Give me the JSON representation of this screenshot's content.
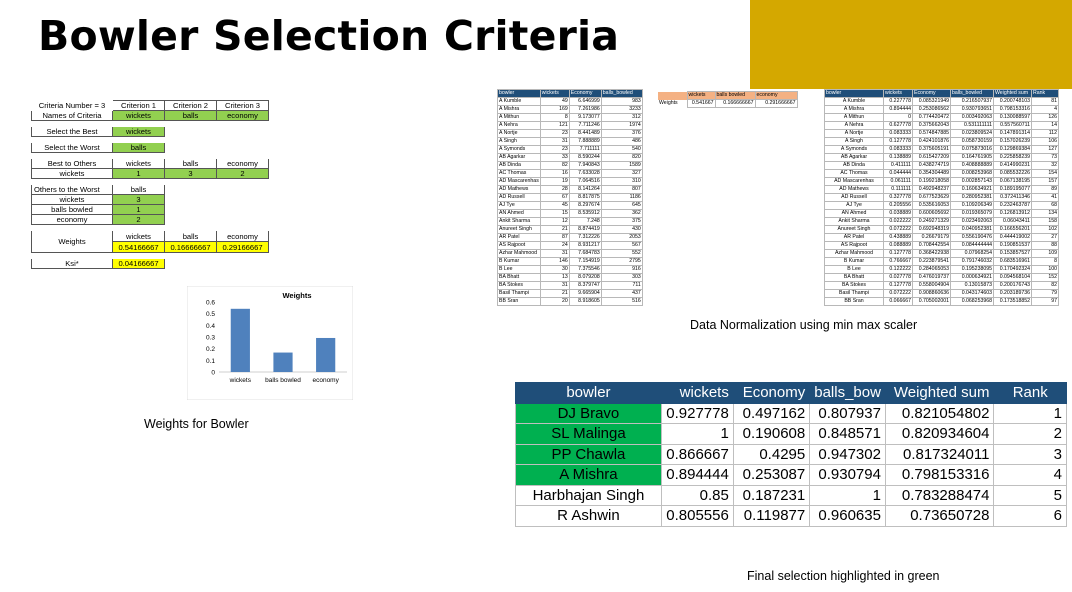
{
  "title": "Bowler Selection Criteria",
  "accent_color": "#d4a800",
  "captions": {
    "weights": "Weights for Bowler",
    "normalization": "Data Normalization using min max scaler",
    "final": "Final selection highlighted in green"
  },
  "criteria_sheet": {
    "header": [
      "Criteria Number = 3",
      "Criterion 1",
      "Criterion 2",
      "Criterion 3"
    ],
    "names_label": "Names of Criteria",
    "names": [
      "wickets",
      "balls",
      "economy"
    ],
    "best_label": "Select the Best",
    "best_value": "wickets",
    "worst_label": "Select the Worst",
    "worst_value": "balls",
    "best_to_others_label": "Best to Others",
    "best_to_others_cols": [
      "wickets",
      "balls",
      "economy"
    ],
    "best_to_others_row_label": "wickets",
    "best_to_others_vals": [
      "1",
      "3",
      "2"
    ],
    "others_to_worst_label": "Others to the Worst",
    "others_to_worst_col": "balls",
    "others_to_worst_rows": [
      {
        "name": "wickets",
        "val": "3"
      },
      {
        "name": "balls bowled",
        "val": "1"
      },
      {
        "name": "economy",
        "val": "2"
      }
    ],
    "weights_label": "Weights",
    "weights_cols": [
      "wickets",
      "balls",
      "economy"
    ],
    "weights_vals": [
      "0.54166667",
      "0.16666667",
      "0.29166667"
    ],
    "ksi_label": "Ksi*",
    "ksi_value": "0.04166667"
  },
  "chart_data": {
    "type": "bar",
    "title": "Weights",
    "categories": [
      "wickets",
      "balls bowled",
      "economy"
    ],
    "values": [
      0.5417,
      0.1667,
      0.2917
    ],
    "ylim": [
      0,
      0.6
    ],
    "yticks": [
      "0",
      "0.1",
      "0.2",
      "0.3",
      "0.4",
      "0.5",
      "0.6"
    ],
    "xlabel": "",
    "ylabel": "",
    "bar_color": "#4f81bd",
    "grid": false
  },
  "raw_table": {
    "headers": [
      "bowler",
      "wickets",
      "Economy",
      "balls_bowled"
    ],
    "rows": [
      [
        "A Kumble",
        "49",
        "6.646999",
        "983"
      ],
      [
        "A Mishra",
        "169",
        "7.261986",
        "3233"
      ],
      [
        "A Mithun",
        "8",
        "9.173077",
        "312"
      ],
      [
        "A Nehra",
        "121",
        "7.711246",
        "1974"
      ],
      [
        "A Nortje",
        "23",
        "8.441489",
        "376"
      ],
      [
        "A Singh",
        "31",
        "7.888889",
        "486"
      ],
      [
        "A Symonds",
        "23",
        "7.711111",
        "540"
      ],
      [
        "AB Agarkar",
        "33",
        "8.590244",
        "820"
      ],
      [
        "AB Dinda",
        "82",
        "7.940843",
        "1589"
      ],
      [
        "AC Thomas",
        "16",
        "7.633028",
        "327"
      ],
      [
        "AD Mascarenhas",
        "19",
        "7.064516",
        "310"
      ],
      [
        "AD Mathews",
        "28",
        "8.141264",
        "807"
      ],
      [
        "AD Russell",
        "67",
        "8.817875",
        "1186"
      ],
      [
        "AJ Tye",
        "45",
        "8.297674",
        "645"
      ],
      [
        "AN Ahmed",
        "15",
        "8.535912",
        "362"
      ],
      [
        "Ankit Sharma",
        "12",
        "7.248",
        "375"
      ],
      [
        "Anureet Singh",
        "21",
        "8.874419",
        "430"
      ],
      [
        "AR Patel",
        "87",
        "7.312226",
        "2053"
      ],
      [
        "AS Rajpoot",
        "24",
        "8.931217",
        "567"
      ],
      [
        "Azhar Mahmood",
        "31",
        "7.684783",
        "552"
      ],
      [
        "B Kumar",
        "146",
        "7.154919",
        "2795"
      ],
      [
        "B Lee",
        "30",
        "7.375546",
        "916"
      ],
      [
        "BA Bhatt",
        "13",
        "8.079208",
        "303"
      ],
      [
        "BA Stokes",
        "31",
        "8.379747",
        "711"
      ],
      [
        "Basil Thampi",
        "21",
        "9.665904",
        "437"
      ],
      [
        "BB Sran",
        "20",
        "8.918605",
        "516"
      ]
    ]
  },
  "weights_table": {
    "label": "Weights",
    "headers": [
      "wickets",
      "balls bowled",
      "economy"
    ],
    "values": [
      "0.541667",
      "0.166666667",
      "0.291666667"
    ]
  },
  "norm_table": {
    "headers": [
      "bowler",
      "wickets",
      "Economy",
      "balls_bowled",
      "Weighted sum",
      "Rank"
    ],
    "rows": [
      [
        "A Kumble",
        "0.227778",
        "0.085321949",
        "0.216507937",
        "0.200748103",
        "81"
      ],
      [
        "A Mishra",
        "0.894444",
        "0.253086562",
        "0.930793651",
        "0.798153316",
        "4"
      ],
      [
        "A Mithun",
        "0",
        "0.774420472",
        "0.003492063",
        "0.130088597",
        "126"
      ],
      [
        "A Nehra",
        "0.627778",
        "0.375662043",
        "0.531111111",
        "0.557560711",
        "14"
      ],
      [
        "A Nortje",
        "0.083333",
        "0.574847885",
        "0.023809524",
        "0.147891314",
        "112"
      ],
      [
        "A Singh",
        "0.127778",
        "0.424101876",
        "0.058730159",
        "0.157026239",
        "106"
      ],
      [
        "A Symonds",
        "0.083333",
        "0.375605191",
        "0.075873016",
        "0.129869384",
        "127"
      ],
      [
        "AB Agarkar",
        "0.138889",
        "0.615427209",
        "0.164761905",
        "0.225858239",
        "73"
      ],
      [
        "AB Dinda",
        "0.411111",
        "0.438274719",
        "0.408888889",
        "0.414990231",
        "32"
      ],
      [
        "AC Thomas",
        "0.044444",
        "0.354304489",
        "0.008253968",
        "0.085532226",
        "154"
      ],
      [
        "AD Mascarenhas",
        "0.061111",
        "0.199218058",
        "0.002857143",
        "0.067138195",
        "157"
      ],
      [
        "AD Mathews",
        "0.111111",
        "0.492948237",
        "0.160634921",
        "0.189195077",
        "89"
      ],
      [
        "AD Russell",
        "0.327778",
        "0.677523629",
        "0.280952381",
        "0.372411346",
        "41"
      ],
      [
        "AJ Tye",
        "0.205556",
        "0.535616053",
        "0.109206349",
        "0.232463787",
        "68"
      ],
      [
        "AN Ahmed",
        "0.038889",
        "0.600605692",
        "0.019365079",
        "0.126813912",
        "134"
      ],
      [
        "Ankit Sharma",
        "0.022222",
        "0.249271329",
        "0.023492063",
        "0.06043411",
        "158"
      ],
      [
        "Anureet Singh",
        "0.072222",
        "0.692948319",
        "0.040952381",
        "0.166556201",
        "102"
      ],
      [
        "AR Patel",
        "0.438889",
        "0.26679179",
        "0.556190476",
        "0.444419002",
        "27"
      ],
      [
        "AS Rajpoot",
        "0.088889",
        "0.708442554",
        "0.084444444",
        "0.190851537",
        "88"
      ],
      [
        "Azhar Mahmood",
        "0.127778",
        "0.368422938",
        "0.07968254",
        "0.153857527",
        "109"
      ],
      [
        "B Kumar",
        "0.766667",
        "0.223879541",
        "0.791746032",
        "0.683516961",
        "8"
      ],
      [
        "B Lee",
        "0.122222",
        "0.284065053",
        "0.195238095",
        "0.170492324",
        "100"
      ],
      [
        "BA Bhatt",
        "0.027778",
        "0.476019737",
        "0.000634921",
        "0.094568104",
        "152"
      ],
      [
        "BA Stokes",
        "0.127778",
        "0.558004904",
        "0.13015873",
        "0.200176743",
        "82"
      ],
      [
        "Basil Thampi",
        "0.072222",
        "0.908860636",
        "0.043174603",
        "0.203189736",
        "79"
      ],
      [
        "BB Sran",
        "0.066667",
        "0.705002001",
        "0.068253968",
        "0.173518852",
        "97"
      ]
    ]
  },
  "final_table": {
    "headers": [
      "bowler",
      "wickets",
      "Economy",
      "balls_bow",
      "Weighted sum",
      "Rank"
    ],
    "highlight_color": "#00b050",
    "rows": [
      {
        "bowler": "DJ Bravo",
        "wickets": "0.927778",
        "economy": "0.497162",
        "balls": "0.807937",
        "wsum": "0.821054802",
        "rank": "1",
        "selected": true
      },
      {
        "bowler": "SL Malinga",
        "wickets": "1",
        "economy": "0.190608",
        "balls": "0.848571",
        "wsum": "0.820934604",
        "rank": "2",
        "selected": true
      },
      {
        "bowler": "PP Chawla",
        "wickets": "0.866667",
        "economy": "0.4295",
        "balls": "0.947302",
        "wsum": "0.817324011",
        "rank": "3",
        "selected": true
      },
      {
        "bowler": "A Mishra",
        "wickets": "0.894444",
        "economy": "0.253087",
        "balls": "0.930794",
        "wsum": "0.798153316",
        "rank": "4",
        "selected": true
      },
      {
        "bowler": "Harbhajan Singh",
        "wickets": "0.85",
        "economy": "0.187231",
        "balls": "1",
        "wsum": "0.783288474",
        "rank": "5",
        "selected": false
      },
      {
        "bowler": "R Ashwin",
        "wickets": "0.805556",
        "economy": "0.119877",
        "balls": "0.960635",
        "wsum": "0.73650728",
        "rank": "6",
        "selected": false
      }
    ]
  }
}
